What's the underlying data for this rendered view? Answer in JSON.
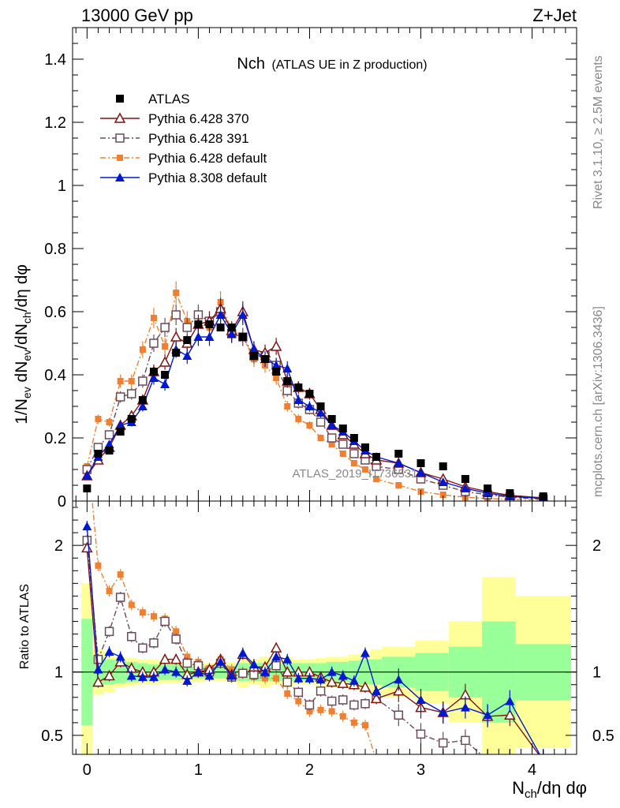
{
  "header": {
    "left": "13000 GeV pp",
    "right": "Z+Jet"
  },
  "side": {
    "rivet": "Rivet 3.1.10, ≥ 2.5M events",
    "mcplots": "mcplots.cern.ch [arXiv:1306.3436]"
  },
  "watermark": "ATLAS_2019_I1736531",
  "colors": {
    "atlas": "#000000",
    "py370": "#7f1416",
    "py391": "#6b4a5a",
    "py6def": "#f08030",
    "py8def": "#0018d0",
    "band_inner": "#99ff99",
    "band_outer": "#ffff99"
  },
  "chart_data": [
    {
      "type": "scatter",
      "title_main": "Nch",
      "title_sub": "(ATLAS UE in Z production)",
      "ylabel": "1/N_ev dN_ev/dN_ch/dη dφ",
      "xlim": [
        -0.13,
        4.4
      ],
      "ylim": [
        0,
        1.5
      ],
      "yticks": [
        0,
        0.2,
        0.4,
        0.6,
        0.8,
        1,
        1.2,
        1.4
      ],
      "ytick_labels": [
        "0",
        "0.2",
        "0.4",
        "0.6",
        "0.8",
        "1",
        "1.2",
        "1.4"
      ],
      "legend_position": "top-left",
      "series": [
        {
          "name": "ATLAS",
          "key": "atlas",
          "x": [
            0,
            0.1,
            0.2,
            0.3,
            0.4,
            0.5,
            0.6,
            0.7,
            0.8,
            0.9,
            1.0,
            1.1,
            1.2,
            1.3,
            1.4,
            1.5,
            1.6,
            1.7,
            1.8,
            1.9,
            2.0,
            2.1,
            2.2,
            2.3,
            2.4,
            2.5,
            2.6,
            2.8,
            3.0,
            3.2,
            3.4,
            3.6,
            3.8,
            4.1
          ],
          "y": [
            0.04,
            0.15,
            0.16,
            0.22,
            0.26,
            0.32,
            0.41,
            0.4,
            0.47,
            0.51,
            0.56,
            0.56,
            0.55,
            0.55,
            0.52,
            0.46,
            0.45,
            0.41,
            0.38,
            0.36,
            0.34,
            0.3,
            0.26,
            0.23,
            0.2,
            0.17,
            0.14,
            0.15,
            0.12,
            0.11,
            0.07,
            0.04,
            0.025,
            0.015
          ]
        },
        {
          "name": "Pythia 6.428 370",
          "key": "py370",
          "x": [
            0,
            0.1,
            0.2,
            0.3,
            0.4,
            0.5,
            0.6,
            0.7,
            0.8,
            0.9,
            1.0,
            1.1,
            1.2,
            1.3,
            1.4,
            1.5,
            1.6,
            1.7,
            1.8,
            1.9,
            2.0,
            2.1,
            2.2,
            2.3,
            2.4,
            2.5,
            2.6,
            2.8,
            3.0,
            3.2,
            3.4,
            3.6,
            3.8,
            4.1
          ],
          "y": [
            0.08,
            0.13,
            0.17,
            0.24,
            0.27,
            0.32,
            0.41,
            0.44,
            0.52,
            0.5,
            0.56,
            0.57,
            0.61,
            0.54,
            0.6,
            0.48,
            0.47,
            0.49,
            0.38,
            0.36,
            0.34,
            0.29,
            0.24,
            0.21,
            0.18,
            0.15,
            0.13,
            0.12,
            0.09,
            0.07,
            0.045,
            0.03,
            0.018,
            0.01
          ]
        },
        {
          "name": "Pythia 6.428 391",
          "key": "py391",
          "x": [
            0,
            0.1,
            0.2,
            0.3,
            0.4,
            0.5,
            0.6,
            0.7,
            0.8,
            0.9,
            1.0,
            1.1,
            1.2,
            1.3,
            1.4,
            1.5,
            1.6,
            1.7,
            1.8,
            1.9,
            2.0,
            2.1,
            2.2,
            2.3,
            2.4,
            2.5,
            2.6,
            2.8,
            3.0,
            3.2,
            3.4,
            3.6,
            3.8,
            4.1
          ],
          "y": [
            0.1,
            0.17,
            0.21,
            0.33,
            0.34,
            0.38,
            0.5,
            0.55,
            0.59,
            0.55,
            0.59,
            0.57,
            0.6,
            0.53,
            0.52,
            0.46,
            0.46,
            0.43,
            0.35,
            0.31,
            0.29,
            0.25,
            0.2,
            0.18,
            0.15,
            0.13,
            0.11,
            0.1,
            0.07,
            0.05,
            0.03,
            0.02,
            0.012,
            0.006
          ]
        },
        {
          "name": "Pythia 6.428 default",
          "key": "py6def",
          "x": [
            0,
            0.1,
            0.2,
            0.3,
            0.4,
            0.5,
            0.6,
            0.7,
            0.8,
            0.9,
            1.0,
            1.1,
            1.2,
            1.3,
            1.4,
            1.5,
            1.6,
            1.7,
            1.8,
            1.9,
            2.0,
            2.1,
            2.2,
            2.3,
            2.4,
            2.5,
            2.6,
            2.8,
            3.0,
            3.2,
            3.4,
            3.6,
            3.8,
            4.1
          ],
          "y": [
            0.11,
            0.26,
            0.25,
            0.38,
            0.38,
            0.48,
            0.58,
            0.49,
            0.66,
            0.57,
            0.56,
            0.55,
            0.63,
            0.54,
            0.52,
            0.45,
            0.43,
            0.39,
            0.3,
            0.26,
            0.24,
            0.2,
            0.18,
            0.15,
            0.12,
            0.1,
            0.07,
            0.05,
            0.03,
            0.02,
            0.012,
            0.008,
            0.005,
            0.003
          ]
        },
        {
          "name": "Pythia 8.308 default",
          "key": "py8def",
          "x": [
            0,
            0.1,
            0.2,
            0.3,
            0.4,
            0.5,
            0.6,
            0.7,
            0.8,
            0.9,
            1.0,
            1.1,
            1.2,
            1.3,
            1.4,
            1.5,
            1.6,
            1.7,
            1.8,
            1.9,
            2.0,
            2.1,
            2.2,
            2.3,
            2.4,
            2.5,
            2.6,
            2.8,
            3.0,
            3.2,
            3.4,
            3.6,
            3.8,
            4.1
          ],
          "y": [
            0.08,
            0.14,
            0.18,
            0.24,
            0.25,
            0.3,
            0.39,
            0.37,
            0.48,
            0.46,
            0.52,
            0.52,
            0.59,
            0.53,
            0.59,
            0.48,
            0.45,
            0.43,
            0.42,
            0.32,
            0.3,
            0.28,
            0.24,
            0.22,
            0.19,
            0.16,
            0.14,
            0.12,
            0.09,
            0.06,
            0.04,
            0.025,
            0.015,
            0.008
          ]
        }
      ]
    },
    {
      "type": "line",
      "xlabel": "N_ch/dη dφ",
      "ylabel": "Ratio to ATLAS",
      "xlim": [
        -0.13,
        4.4
      ],
      "ylim": [
        0.35,
        2.35
      ],
      "xticks": [
        0,
        1,
        2,
        3,
        4
      ],
      "xtick_labels": [
        "0",
        "1",
        "2",
        "3",
        "4"
      ],
      "yticks": [
        0.5,
        1,
        2
      ],
      "ytick_labels": [
        "0.5",
        "1",
        "2"
      ],
      "reference_line": 1,
      "bands": {
        "x_edges": [
          -0.05,
          0.05,
          0.15,
          0.25,
          0.35,
          0.45,
          0.55,
          0.65,
          0.75,
          0.85,
          0.95,
          1.05,
          1.15,
          1.25,
          1.35,
          1.45,
          1.55,
          1.65,
          1.75,
          1.85,
          1.95,
          2.05,
          2.15,
          2.25,
          2.35,
          2.45,
          2.55,
          2.65,
          2.95,
          3.25,
          3.55,
          3.85,
          4.35
        ],
        "inner_half": [
          0.42,
          0.12,
          0.1,
          0.09,
          0.08,
          0.07,
          0.06,
          0.06,
          0.06,
          0.05,
          0.05,
          0.05,
          0.05,
          0.05,
          0.07,
          0.07,
          0.07,
          0.07,
          0.07,
          0.07,
          0.07,
          0.07,
          0.08,
          0.08,
          0.09,
          0.1,
          0.1,
          0.12,
          0.15,
          0.2,
          0.4,
          0.22
        ],
        "outer_half": [
          0.7,
          0.18,
          0.16,
          0.12,
          0.11,
          0.1,
          0.1,
          0.09,
          0.09,
          0.08,
          0.08,
          0.07,
          0.07,
          0.08,
          0.12,
          0.1,
          0.12,
          0.1,
          0.12,
          0.1,
          0.1,
          0.11,
          0.12,
          0.12,
          0.14,
          0.15,
          0.18,
          0.2,
          0.25,
          0.4,
          0.75,
          0.6
        ]
      },
      "series": [
        {
          "key": "py370",
          "x": [
            0,
            0.1,
            0.2,
            0.3,
            0.4,
            0.5,
            0.6,
            0.7,
            0.8,
            0.9,
            1.0,
            1.1,
            1.2,
            1.3,
            1.4,
            1.5,
            1.6,
            1.7,
            1.8,
            1.9,
            2.0,
            2.1,
            2.2,
            2.3,
            2.4,
            2.5,
            2.6,
            2.8,
            3.0,
            3.2,
            3.4,
            3.6,
            3.8,
            4.1
          ],
          "y": [
            1.98,
            0.92,
            0.97,
            1.08,
            1.03,
            1.0,
            1.0,
            1.1,
            1.1,
            0.98,
            1.0,
            1.02,
            1.1,
            0.98,
            1.14,
            1.04,
            1.04,
            1.19,
            1.0,
            1.0,
            1.0,
            0.96,
            0.92,
            0.91,
            0.9,
            0.88,
            0.79,
            0.85,
            0.72,
            0.68,
            0.82,
            0.65,
            0.66,
            0.3
          ]
        },
        {
          "key": "py391",
          "x": [
            0,
            0.1,
            0.2,
            0.3,
            0.4,
            0.5,
            0.6,
            0.7,
            0.8,
            0.9,
            1.0,
            1.1,
            1.2,
            1.3,
            1.4,
            1.5,
            1.6,
            1.7,
            1.8,
            1.9,
            2.0,
            2.1,
            2.2,
            2.3,
            2.4,
            2.5,
            2.6,
            2.8,
            3.0,
            3.2,
            3.4,
            3.6,
            3.8,
            4.1
          ],
          "y": [
            2.04,
            1.1,
            1.32,
            1.59,
            1.28,
            1.19,
            1.23,
            1.4,
            1.26,
            1.07,
            1.05,
            1.0,
            1.07,
            0.96,
            0.99,
            0.98,
            1.0,
            1.05,
            0.92,
            0.84,
            0.74,
            0.85,
            0.77,
            0.78,
            0.74,
            0.75,
            0.79,
            0.66,
            0.51,
            0.44,
            0.46,
            0.3,
            0.3,
            0.3
          ]
        },
        {
          "key": "py6def",
          "x": [
            0,
            0.1,
            0.2,
            0.3,
            0.4,
            0.5,
            0.6,
            0.7,
            0.8,
            0.9,
            1.0,
            1.1,
            1.2,
            1.3,
            1.4,
            1.5,
            1.6,
            1.7,
            1.8,
            1.9,
            2.0,
            2.1,
            2.2,
            2.3,
            2.4,
            2.5,
            2.6,
            2.8,
            3.0,
            3.2,
            3.4,
            3.6,
            3.8,
            4.1
          ],
          "y": [
            2.8,
            1.84,
            1.64,
            1.77,
            1.53,
            1.47,
            1.44,
            1.42,
            1.32,
            1.12,
            1.08,
            1.03,
            1.1,
            1.02,
            1.0,
            0.96,
            0.95,
            0.95,
            0.83,
            0.77,
            0.69,
            0.7,
            0.69,
            0.65,
            0.6,
            0.58,
            0.3,
            0.3,
            0.3,
            0.3,
            0.3,
            0.3,
            0.3,
            0.3
          ]
        },
        {
          "key": "py8def",
          "x": [
            0,
            0.1,
            0.2,
            0.3,
            0.4,
            0.5,
            0.6,
            0.7,
            0.8,
            0.9,
            1.0,
            1.1,
            1.2,
            1.3,
            1.4,
            1.5,
            1.6,
            1.7,
            1.8,
            1.9,
            2.0,
            2.1,
            2.2,
            2.3,
            2.4,
            2.5,
            2.6,
            2.8,
            3.0,
            3.2,
            3.4,
            3.6,
            3.8,
            4.1
          ],
          "y": [
            2.15,
            1.02,
            1.16,
            1.12,
            0.97,
            0.96,
            0.96,
            1.02,
            1.0,
            0.93,
            1.0,
            0.97,
            1.08,
            0.97,
            1.15,
            1.06,
            1.0,
            1.12,
            1.1,
            0.95,
            0.95,
            0.94,
            1.0,
            0.97,
            0.93,
            1.15,
            0.85,
            0.94,
            0.78,
            0.68,
            0.72,
            0.66,
            0.77,
            0.3
          ]
        }
      ]
    }
  ]
}
